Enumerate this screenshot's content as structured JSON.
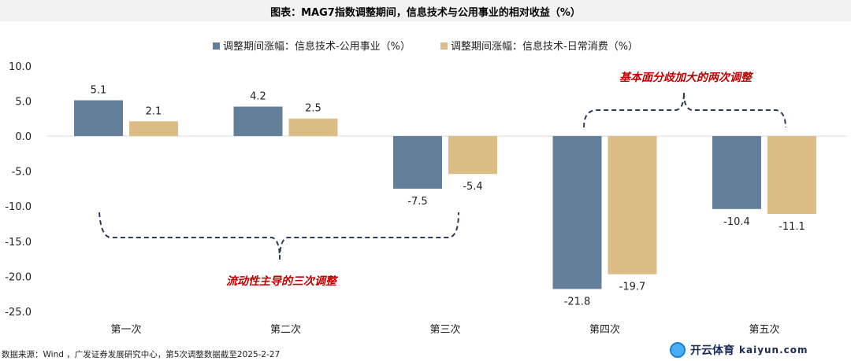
{
  "title": "图表：MAG7指数调整期间，信息技术与公用事业的相对收益（%）",
  "source": "数据来源：Wind ，广发证券发展研究中心，第5次调整数据截至2025-2-27",
  "annotations": {
    "left": "流动性主导的三次调整",
    "right": "基本面分歧加大的两次调整",
    "color": "#c00000"
  },
  "watermark": {
    "cn": "开云体育",
    "en": "kaiyun.com"
  },
  "chart_data": {
    "type": "bar",
    "title": "图表：MAG7指数调整期间，信息技术与公用事业的相对收益（%）",
    "categories": [
      "第一次",
      "第二次",
      "第三次",
      "第四次",
      "第五次"
    ],
    "series": [
      {
        "name": "调整期间涨幅：信息技术-公用事业（%）",
        "values": [
          5.1,
          4.2,
          -7.5,
          -21.8,
          -10.4
        ],
        "color": "#647f99"
      },
      {
        "name": "调整期间涨幅：信息技术-日常消费（%）",
        "values": [
          2.1,
          2.5,
          -5.4,
          -19.7,
          -11.1
        ],
        "color": "#dcbd86"
      }
    ],
    "ylim": [
      -25,
      10
    ],
    "yticks": [
      "10.0",
      "5.0",
      "0.0",
      "-5.0",
      "-10.0",
      "-15.0",
      "-20.0",
      "-25.0"
    ],
    "legend": "top",
    "grid": false
  }
}
